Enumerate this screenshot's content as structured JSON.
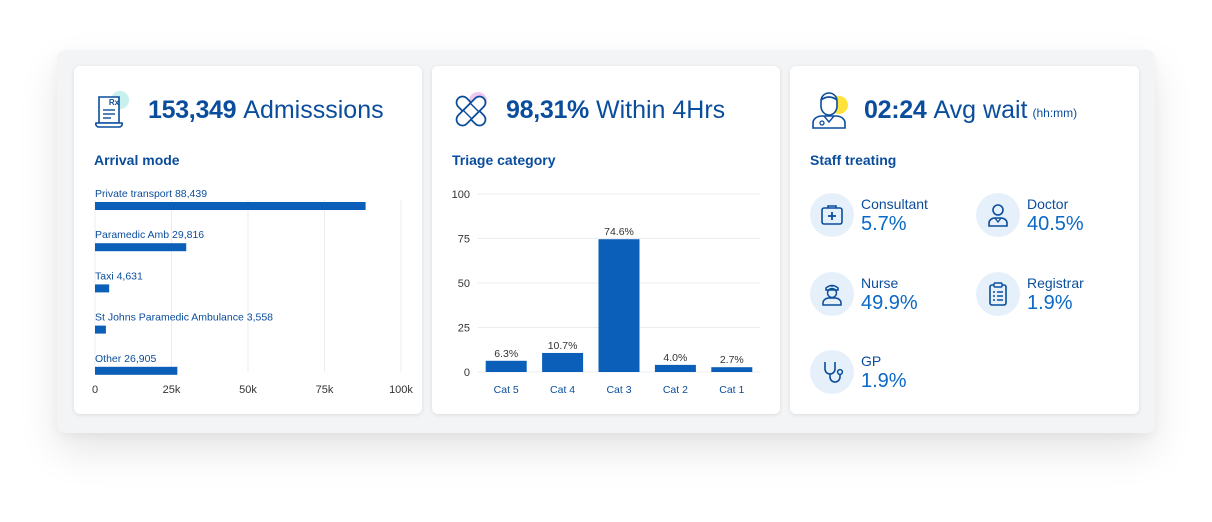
{
  "colors": {
    "primary": "#0a4d9c",
    "bar": "#0b5fb8",
    "accent_teal": "#c8f0ec",
    "accent_pink": "#f0c8ee",
    "accent_yellow": "#ffe23a",
    "badge_bg": "#e6f0fb"
  },
  "admissions": {
    "icon": "prescription-document-icon",
    "value": "153,349",
    "label": "Admisssions",
    "section_title": "Arrival mode"
  },
  "triage": {
    "icon": "bandage-icon",
    "value": "98,31%",
    "label": "Within 4Hrs",
    "section_title": "Triage category"
  },
  "wait": {
    "icon": "doctor-avatar-icon",
    "value": "02:24",
    "label": "Avg wait",
    "unit": "(hh:mm)",
    "section_title": "Staff treating"
  },
  "staff": [
    {
      "name": "Consultant",
      "pct": "5.7%",
      "icon": "medical-kit-icon"
    },
    {
      "name": "Doctor",
      "pct": "40.5%",
      "icon": "doctor-icon"
    },
    {
      "name": "Nurse",
      "pct": "49.9%",
      "icon": "nurse-icon"
    },
    {
      "name": "Registrar",
      "pct": "1.9%",
      "icon": "clipboard-icon"
    },
    {
      "name": "GP",
      "pct": "1.9%",
      "icon": "stethoscope-icon"
    }
  ],
  "chart_data": [
    {
      "type": "bar",
      "orientation": "horizontal",
      "title": "Arrival mode",
      "categories": [
        "Private transport",
        "Paramedic Amb",
        "Taxi",
        "St Johns Paramedic Ambulance",
        "Other"
      ],
      "values": [
        88439,
        29816,
        4631,
        3558,
        26905
      ],
      "value_labels": [
        "88,439",
        "29,816",
        "4,631",
        "3,558",
        "26,905"
      ],
      "xlim": [
        0,
        100000
      ],
      "xticks": [
        0,
        25000,
        50000,
        75000,
        100000
      ],
      "xtick_labels": [
        "0",
        "25k",
        "50k",
        "75k",
        "100k"
      ],
      "grid": true
    },
    {
      "type": "bar",
      "title": "Triage category",
      "categories": [
        "Cat 5",
        "Cat 4",
        "Cat 3",
        "Cat 2",
        "Cat 1"
      ],
      "values": [
        6.3,
        10.7,
        74.6,
        4.0,
        2.7
      ],
      "value_labels": [
        "6.3%",
        "10.7%",
        "74.6%",
        "4.0%",
        "2.7%"
      ],
      "ylim": [
        0,
        100
      ],
      "yticks": [
        0,
        25,
        50,
        75,
        100
      ],
      "ytick_labels": [
        "0",
        "25",
        "50",
        "75",
        "100"
      ],
      "grid": true
    }
  ]
}
